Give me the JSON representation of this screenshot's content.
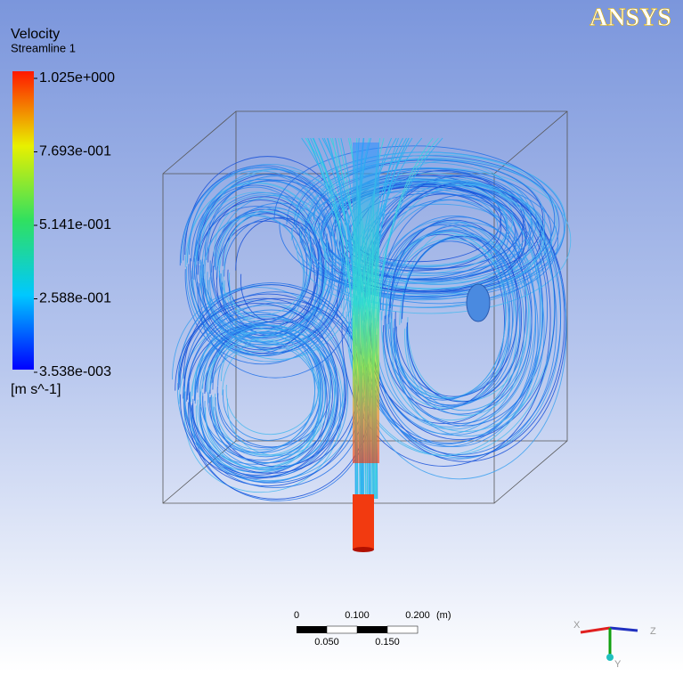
{
  "logo": "ANSYS",
  "legend": {
    "title": "Velocity",
    "subtitle": "Streamline 1",
    "ticks": [
      "1.025e+000",
      "7.693e-001",
      "5.141e-001",
      "2.588e-001",
      "3.538e-003"
    ],
    "unit": "[m s^-1]"
  },
  "scale_bar": {
    "top_labels": [
      "0",
      "0.100",
      "0.200"
    ],
    "unit": "(m)",
    "bottom_labels": [
      "0.050",
      "0.150"
    ]
  },
  "axes": {
    "x": "X",
    "y": "Y",
    "z": "Z"
  }
}
